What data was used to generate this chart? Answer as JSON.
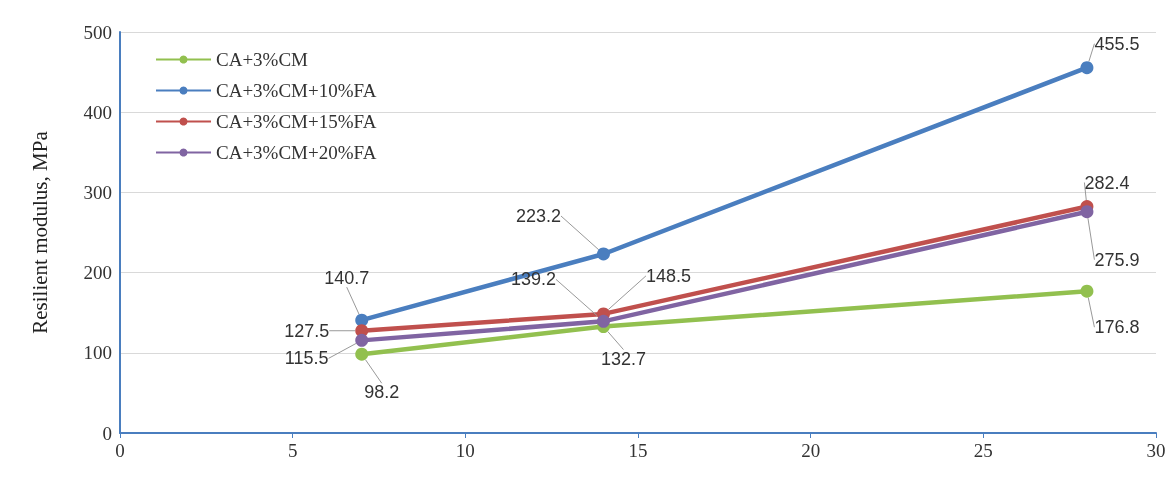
{
  "chart_data": {
    "type": "line",
    "ylabel": "Resilient modulus, MPa",
    "x": [
      7,
      14,
      28
    ],
    "series": [
      {
        "name": "CA+3%CM",
        "color": "#92c04f",
        "values": [
          98.2,
          132.7,
          176.8
        ]
      },
      {
        "name": "CA+3%CM+10%FA",
        "color": "#4a7ebf",
        "values": [
          140.7,
          223.2,
          455.5
        ]
      },
      {
        "name": "CA+3%CM+15%FA",
        "color": "#c0504d",
        "values": [
          127.5,
          148.5,
          282.4
        ]
      },
      {
        "name": "CA+3%CM+20%FA",
        "color": "#8064a2",
        "values": [
          115.5,
          139.2,
          275.9
        ]
      }
    ],
    "xlim": [
      0,
      30
    ],
    "xticks": [
      0,
      5,
      10,
      15,
      20,
      25,
      30
    ],
    "ylim": [
      0,
      500
    ],
    "yticks": [
      0,
      100,
      200,
      300,
      400,
      500
    ],
    "grid": "y",
    "legend": "top left",
    "marker": "circle",
    "line_style": "solid",
    "data_labels": true
  }
}
